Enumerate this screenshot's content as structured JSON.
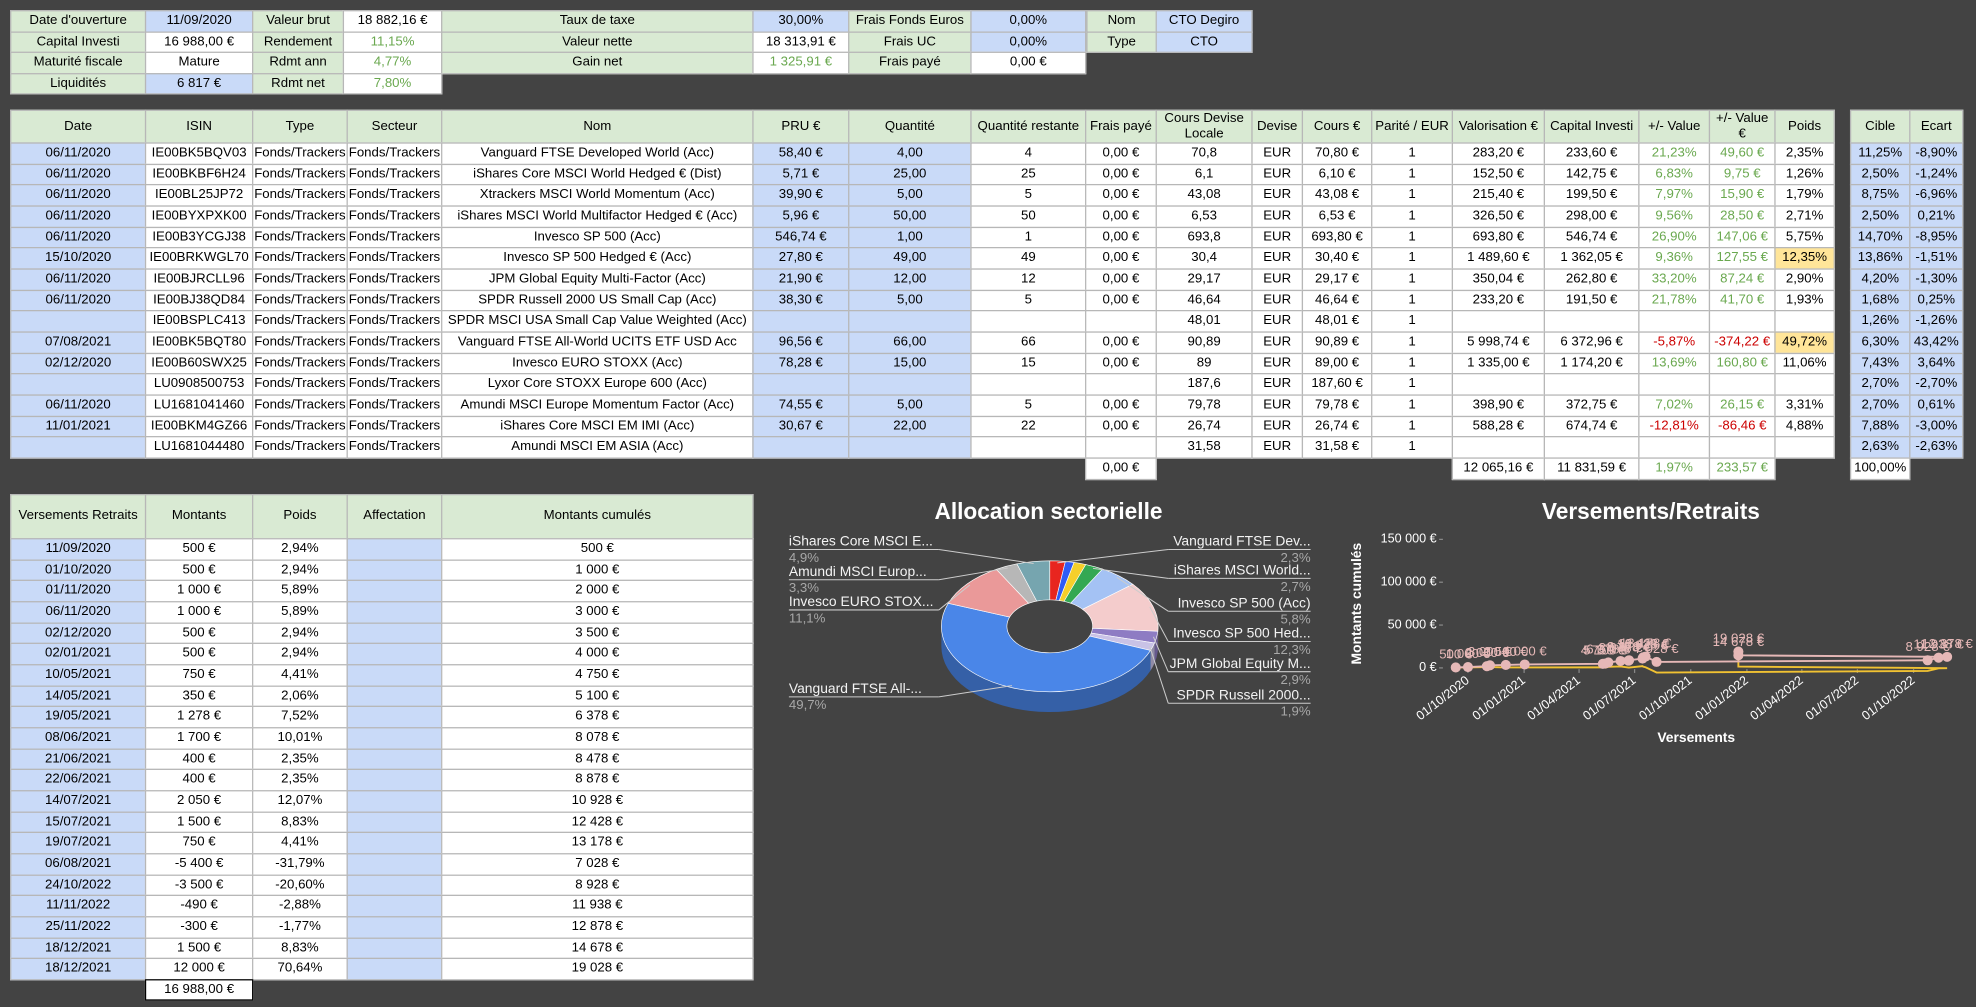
{
  "summary": {
    "rows": [
      [
        "Date d'ouverture",
        "11/09/2020",
        "Valeur brut",
        "18 882,16 €",
        "Taux de taxe",
        "30,00%",
        "Frais Fonds Euros",
        "0,00%",
        "Nom",
        "CTO Degiro"
      ],
      [
        "Capital Investi",
        "16 988,00 €",
        "Rendement",
        "11,15%",
        "Valeur nette",
        "18 313,91 €",
        "Frais UC",
        "0,00%",
        "Type",
        "CTO"
      ],
      [
        "Maturité fiscale",
        "Mature",
        "Rdmt ann",
        "4,77%",
        "Gain net",
        "1 325,91 €",
        "Frais payé",
        "0,00 €"
      ],
      [
        "Liquidités",
        "6 817 €",
        "Rdmt net",
        "7,80%"
      ]
    ]
  },
  "portfolio": {
    "headers": [
      "Date",
      "ISIN",
      "Type",
      "Secteur",
      "Nom",
      "PRU €",
      "Quantité",
      "Quantité restante",
      "Frais payé",
      "Cours Devise Locale",
      "Devise",
      "Cours €",
      "Parité / EUR",
      "Valorisation €",
      "Capital Investi",
      "+/- Value",
      "+/- Value €",
      "Poids",
      "Cible",
      "Ecart"
    ],
    "rows": [
      [
        "06/11/2020",
        "IE00BK5BQV03",
        "Fonds/Trackers",
        "Fonds/Trackers",
        "Vanguard FTSE Developed World (Acc)",
        "58,40 €",
        "4,00",
        "4",
        "0,00 €",
        "70,8",
        "EUR",
        "70,80 €",
        "1",
        "283,20 €",
        "233,60 €",
        "21,23%",
        "49,60 €",
        "2,35%",
        "11,25%",
        "-8,90%"
      ],
      [
        "06/11/2020",
        "IE00BKBF6H24",
        "Fonds/Trackers",
        "Fonds/Trackers",
        "iShares Core MSCI World Hedged € (Dist)",
        "5,71 €",
        "25,00",
        "25",
        "0,00 €",
        "6,1",
        "EUR",
        "6,10 €",
        "1",
        "152,50 €",
        "142,75 €",
        "6,83%",
        "9,75 €",
        "1,26%",
        "2,50%",
        "-1,24%"
      ],
      [
        "06/11/2020",
        "IE00BL25JP72",
        "Fonds/Trackers",
        "Fonds/Trackers",
        "Xtrackers MSCI World Momentum (Acc)",
        "39,90 €",
        "5,00",
        "5",
        "0,00 €",
        "43,08",
        "EUR",
        "43,08 €",
        "1",
        "215,40 €",
        "199,50 €",
        "7,97%",
        "15,90 €",
        "1,79%",
        "8,75%",
        "-6,96%"
      ],
      [
        "06/11/2020",
        "IE00BYXPXK00",
        "Fonds/Trackers",
        "Fonds/Trackers",
        "iShares MSCI World Multifactor Hedged € (Acc)",
        "5,96 €",
        "50,00",
        "50",
        "0,00 €",
        "6,53",
        "EUR",
        "6,53 €",
        "1",
        "326,50 €",
        "298,00 €",
        "9,56%",
        "28,50 €",
        "2,71%",
        "2,50%",
        "0,21%"
      ],
      [
        "06/11/2020",
        "IE00B3YCGJ38",
        "Fonds/Trackers",
        "Fonds/Trackers",
        "Invesco SP 500 (Acc)",
        "546,74 €",
        "1,00",
        "1",
        "0,00 €",
        "693,8",
        "EUR",
        "693,80 €",
        "1",
        "693,80 €",
        "546,74 €",
        "26,90%",
        "147,06 €",
        "5,75%",
        "14,70%",
        "-8,95%"
      ],
      [
        "15/10/2020",
        "IE00BRKWGL70",
        "Fonds/Trackers",
        "Fonds/Trackers",
        "Invesco SP 500 Hedged € (Acc)",
        "27,80 €",
        "49,00",
        "49",
        "0,00 €",
        "30,4",
        "EUR",
        "30,40 €",
        "1",
        "1 489,60 €",
        "1 362,05 €",
        "9,36%",
        "127,55 €",
        "12,35%",
        "13,86%",
        "-1,51%"
      ],
      [
        "06/11/2020",
        "IE00BJRCLL96",
        "Fonds/Trackers",
        "Fonds/Trackers",
        "JPM Global Equity Multi-Factor (Acc)",
        "21,90 €",
        "12,00",
        "12",
        "0,00 €",
        "29,17",
        "EUR",
        "29,17 €",
        "1",
        "350,04 €",
        "262,80 €",
        "33,20%",
        "87,24 €",
        "2,90%",
        "4,20%",
        "-1,30%"
      ],
      [
        "06/11/2020",
        "IE00BJ38QD84",
        "Fonds/Trackers",
        "Fonds/Trackers",
        "SPDR Russell 2000 US Small Cap (Acc)",
        "38,30 €",
        "5,00",
        "5",
        "0,00 €",
        "46,64",
        "EUR",
        "46,64 €",
        "1",
        "233,20 €",
        "191,50 €",
        "21,78%",
        "41,70 €",
        "1,93%",
        "1,68%",
        "0,25%"
      ],
      [
        null,
        "IE00BSPLC413",
        "Fonds/Trackers",
        "Fonds/Trackers",
        "SPDR MSCI USA Small Cap Value Weighted (Acc)",
        null,
        null,
        null,
        null,
        "48,01",
        "EUR",
        "48,01 €",
        "1",
        null,
        null,
        null,
        null,
        null,
        "1,26%",
        "-1,26%"
      ],
      [
        "07/08/2021",
        "IE00BK5BQT80",
        "Fonds/Trackers",
        "Fonds/Trackers",
        "Vanguard FTSE All-World UCITS ETF USD Acc",
        "96,56 €",
        "66,00",
        "66",
        "0,00 €",
        "90,89",
        "EUR",
        "90,89 €",
        "1",
        "5 998,74 €",
        "6 372,96 €",
        "-5,87%",
        "-374,22 €",
        "49,72%",
        "6,30%",
        "43,42%"
      ],
      [
        "02/12/2020",
        "IE00B60SWX25",
        "Fonds/Trackers",
        "Fonds/Trackers",
        "Invesco EURO STOXX (Acc)",
        "78,28 €",
        "15,00",
        "15",
        "0,00 €",
        "89",
        "EUR",
        "89,00 €",
        "1",
        "1 335,00 €",
        "1 174,20 €",
        "13,69%",
        "160,80 €",
        "11,06%",
        "7,43%",
        "3,64%"
      ],
      [
        null,
        "LU0908500753",
        "Fonds/Trackers",
        "Fonds/Trackers",
        "Lyxor Core STOXX Europe 600 (Acc)",
        null,
        null,
        null,
        null,
        "187,6",
        "EUR",
        "187,60 €",
        "1",
        null,
        null,
        null,
        null,
        null,
        "2,70%",
        "-2,70%"
      ],
      [
        "06/11/2020",
        "LU1681041460",
        "Fonds/Trackers",
        "Fonds/Trackers",
        "Amundi MSCI Europe Momentum Factor (Acc)",
        "74,55 €",
        "5,00",
        "5",
        "0,00 €",
        "79,78",
        "EUR",
        "79,78 €",
        "1",
        "398,90 €",
        "372,75 €",
        "7,02%",
        "26,15 €",
        "3,31%",
        "2,70%",
        "0,61%"
      ],
      [
        "11/01/2021",
        "IE00BKM4GZ66",
        "Fonds/Trackers",
        "Fonds/Trackers",
        "iShares Core MSCI EM IMI (Acc)",
        "30,67 €",
        "22,00",
        "22",
        "0,00 €",
        "26,74",
        "EUR",
        "26,74 €",
        "1",
        "588,28 €",
        "674,74 €",
        "-12,81%",
        "-86,46 €",
        "4,88%",
        "7,88%",
        "-3,00%"
      ],
      [
        null,
        "LU1681044480",
        "Fonds/Trackers",
        "Fonds/Trackers",
        "Amundi MSCI EM ASIA (Acc)",
        null,
        null,
        null,
        null,
        "31,58",
        "EUR",
        "31,58 €",
        "1",
        null,
        null,
        null,
        null,
        null,
        "2,63%",
        "-2,63%"
      ]
    ],
    "totals": [
      null,
      null,
      null,
      null,
      null,
      null,
      null,
      null,
      "0,00 €",
      null,
      null,
      null,
      null,
      "12 065,16 €",
      "11 831,59 €",
      "1,97%",
      "233,57 €",
      null,
      "100,00%",
      null
    ]
  },
  "contributions": {
    "headers": [
      "Versements Retraits",
      "Montants",
      "Poids",
      "Affectation",
      "Montants cumulés"
    ],
    "rows": [
      [
        "11/09/2020",
        "500 €",
        "2,94%",
        null,
        "500 €"
      ],
      [
        "01/10/2020",
        "500 €",
        "2,94%",
        null,
        "1 000 €"
      ],
      [
        "01/11/2020",
        "1 000 €",
        "5,89%",
        null,
        "2 000 €"
      ],
      [
        "06/11/2020",
        "1 000 €",
        "5,89%",
        null,
        "3 000 €"
      ],
      [
        "02/12/2020",
        "500 €",
        "2,94%",
        null,
        "3 500 €"
      ],
      [
        "02/01/2021",
        "500 €",
        "2,94%",
        null,
        "4 000 €"
      ],
      [
        "10/05/2021",
        "750 €",
        "4,41%",
        null,
        "4 750 €"
      ],
      [
        "14/05/2021",
        "350 €",
        "2,06%",
        null,
        "5 100 €"
      ],
      [
        "19/05/2021",
        "1 278 €",
        "7,52%",
        null,
        "6 378 €"
      ],
      [
        "08/06/2021",
        "1 700 €",
        "10,01%",
        null,
        "8 078 €"
      ],
      [
        "21/06/2021",
        "400 €",
        "2,35%",
        null,
        "8 478 €"
      ],
      [
        "22/06/2021",
        "400 €",
        "2,35%",
        null,
        "8 878 €"
      ],
      [
        "14/07/2021",
        "2 050 €",
        "12,07%",
        null,
        "10 928 €"
      ],
      [
        "15/07/2021",
        "1 500 €",
        "8,83%",
        null,
        "12 428 €"
      ],
      [
        "19/07/2021",
        "750 €",
        "4,41%",
        null,
        "13 178 €"
      ],
      [
        "06/08/2021",
        "-5 400 €",
        "-31,79%",
        null,
        "7 028 €"
      ],
      [
        "24/10/2022",
        "-3 500 €",
        "-20,60%",
        null,
        "8 928 €"
      ],
      [
        "11/11/2022",
        "-490 €",
        "-2,88%",
        null,
        "11 938 €"
      ],
      [
        "25/11/2022",
        "-300 €",
        "-1,77%",
        null,
        "12 878 €"
      ],
      [
        "18/12/2021",
        "1 500 €",
        "8,83%",
        null,
        "14 678 €"
      ],
      [
        "18/12/2021",
        "12 000 €",
        "70,64%",
        null,
        "19 028 €"
      ]
    ],
    "total": "16 988,00 €"
  },
  "chart_data": [
    {
      "type": "pie",
      "title": "Allocation sectorielle",
      "categories": [
        "Vanguard FTSE Dev...",
        null,
        null,
        "iShares MSCI World...",
        "Invesco SP 500 (Acc)",
        "Invesco SP 500 Hed...",
        "JPM Global Equity M...",
        "SPDR Russell 2000...",
        "Vanguard FTSE All-...",
        "Invesco EURO STOX...",
        "Amundi MSCI Europ...",
        "iShares Core MSCI E..."
      ],
      "values": [
        2.3,
        1.3,
        1.8,
        2.7,
        5.8,
        12.3,
        2.9,
        1.9,
        49.7,
        11.1,
        3.3,
        4.9
      ],
      "value_labels": [
        "2,3%",
        null,
        null,
        "2,7%",
        "5,8%",
        "12,3%",
        "2,9%",
        "1,9%",
        "49,7%",
        "11,1%",
        "3,3%",
        "4,9%"
      ],
      "colors": [
        "#e8251f",
        "#2f5cf5",
        "#f6cf2a",
        "#34a853",
        "#a4c2f4",
        "#f4cccc",
        "#8e7cc3",
        "#c9c2e6",
        "#4a86e8",
        "#ea9999",
        "#b7b7b7",
        "#76a5af"
      ]
    },
    {
      "type": "line",
      "title": "Versements/Retraits",
      "x_label": "Versements",
      "y_label": "Montants cumulés",
      "x": [
        "2020-09-11",
        "2020-10-01",
        "2020-11-01",
        "2020-11-06",
        "2020-12-02",
        "2021-01-02",
        "2021-05-10",
        "2021-05-14",
        "2021-05-19",
        "2021-06-08",
        "2021-06-21",
        "2021-06-22",
        "2021-07-14",
        "2021-07-15",
        "2021-07-19",
        "2021-08-06",
        "2022-10-24",
        "2022-11-11",
        "2022-11-25",
        "2021-12-18",
        "2021-12-18"
      ],
      "xlim": [
        "2020-08-21",
        "2022-12-01"
      ],
      "xticks": [
        {
          "value": "2020-10-01",
          "label": "01/10/2020"
        },
        {
          "value": "2021-01-01",
          "label": "01/01/2021"
        },
        {
          "value": "2021-04-01",
          "label": "01/04/2021"
        },
        {
          "value": "2021-07-01",
          "label": "01/07/2021"
        },
        {
          "value": "2021-10-01",
          "label": "01/10/2021"
        },
        {
          "value": "2022-01-01",
          "label": "01/01/2022"
        },
        {
          "value": "2022-04-01",
          "label": "01/04/2022"
        },
        {
          "value": "2022-07-01",
          "label": "01/07/2022"
        },
        {
          "value": "2022-10-01",
          "label": "01/10/2022"
        }
      ],
      "ylim": [
        0,
        150000
      ],
      "yticks": [
        {
          "value": 0,
          "label": "0 €"
        },
        {
          "value": 50000,
          "label": "50 000 €"
        },
        {
          "value": 100000,
          "label": "100 000 €"
        },
        {
          "value": 150000,
          "label": "150 000 €"
        }
      ],
      "series": [
        {
          "color": "#f1c232",
          "values": [
            500,
            500,
            1000,
            1000,
            500,
            500,
            750,
            350,
            1278,
            1700,
            400,
            400,
            2050,
            1500,
            750,
            -5400,
            -3500,
            -490,
            -300,
            1500,
            12000
          ]
        },
        {
          "color": "#e6b8b7",
          "values": [
            500,
            1000,
            2000,
            3000,
            3500,
            4000,
            4750,
            5100,
            6378,
            8078,
            8478,
            8878,
            10928,
            12428,
            13178,
            7028,
            8928,
            11938,
            12878,
            14678,
            19028
          ],
          "value_labels": [
            "500 €",
            "1 000 €",
            "2 000 €",
            "3 000 €",
            "3 500 €",
            "4 000 €",
            "4 750 €",
            "5 100 €",
            "6 378 €",
            "8 078 €",
            "8 478 €",
            "8 878 €",
            "10 928 €",
            "12 428 €",
            "13 178 €",
            "7 028 €",
            "8 928 €",
            "11 938 €",
            "12 878 €",
            "14 678 €",
            "19 028 €"
          ]
        }
      ]
    }
  ]
}
